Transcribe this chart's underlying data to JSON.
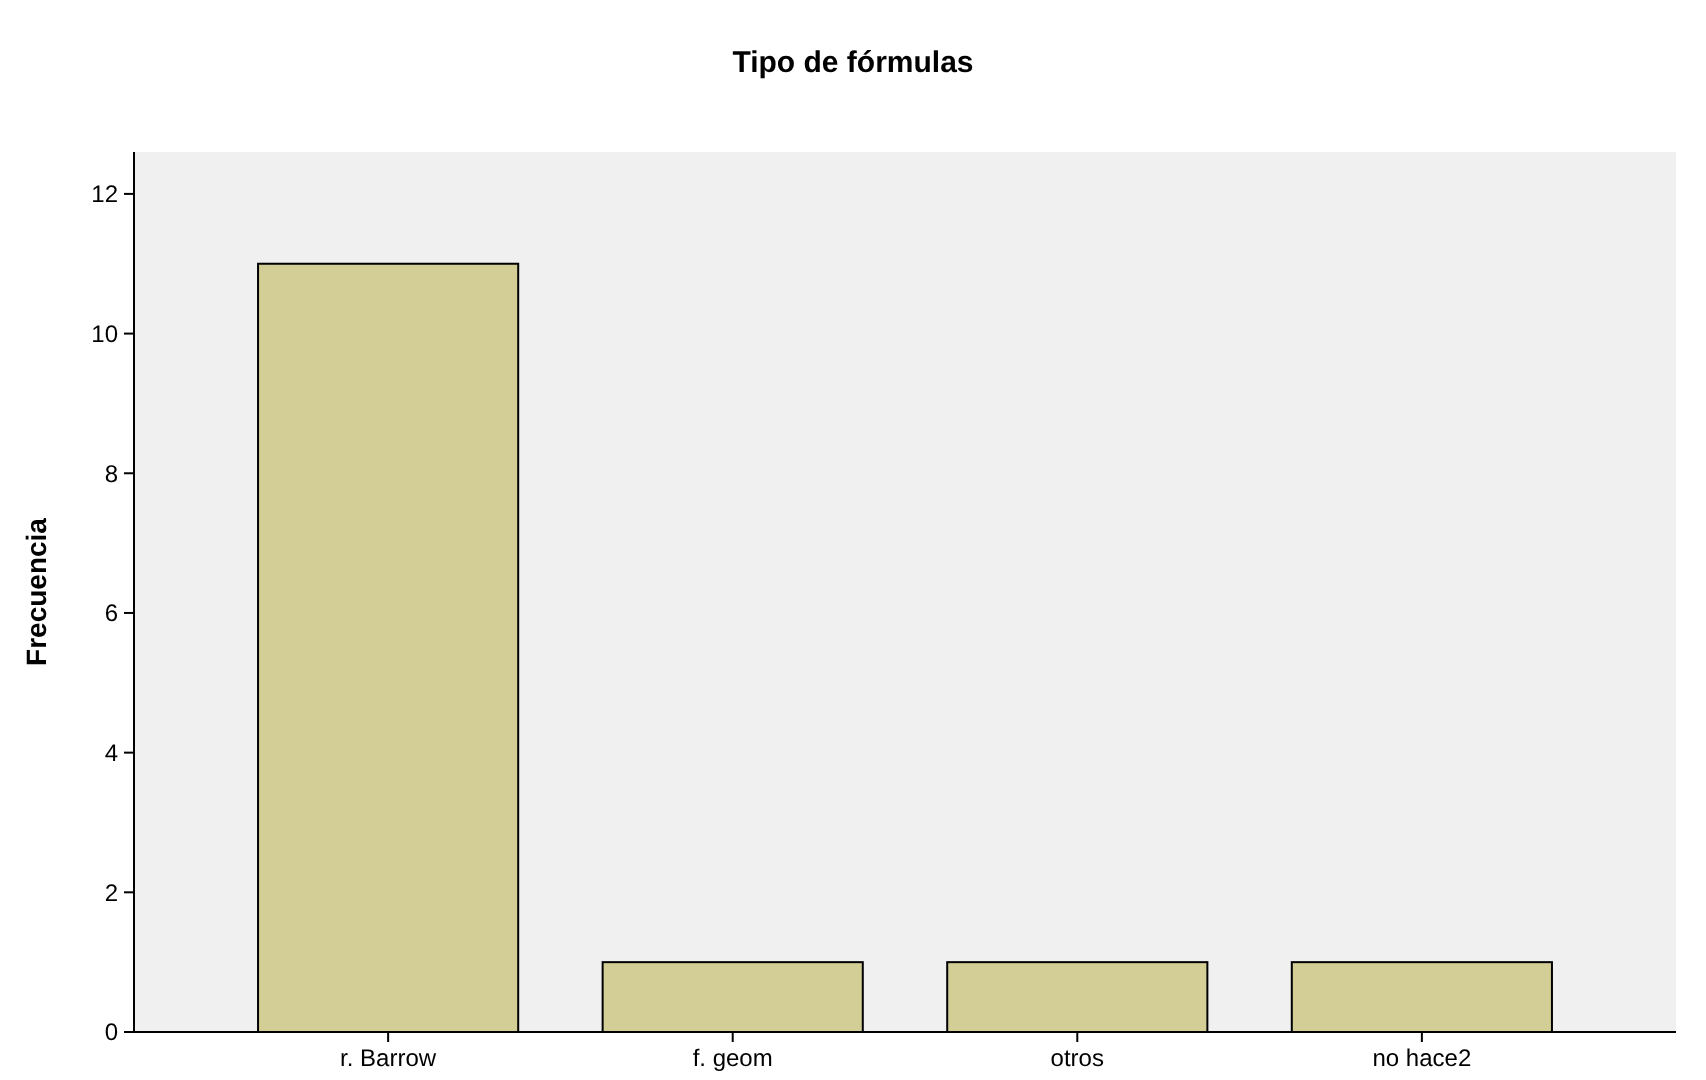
{
  "chart_data": {
    "type": "bar",
    "title": "Tipo de fórmulas",
    "ylabel": "Frecuencia",
    "categories": [
      "r. Barrow",
      "f. geom",
      "otros",
      "no hace2"
    ],
    "values": [
      11,
      1,
      1,
      1
    ],
    "color": "#d3cd96",
    "ylim": [
      0,
      12.6
    ],
    "yticks": [
      0,
      2,
      4,
      6,
      8,
      10,
      12
    ]
  }
}
